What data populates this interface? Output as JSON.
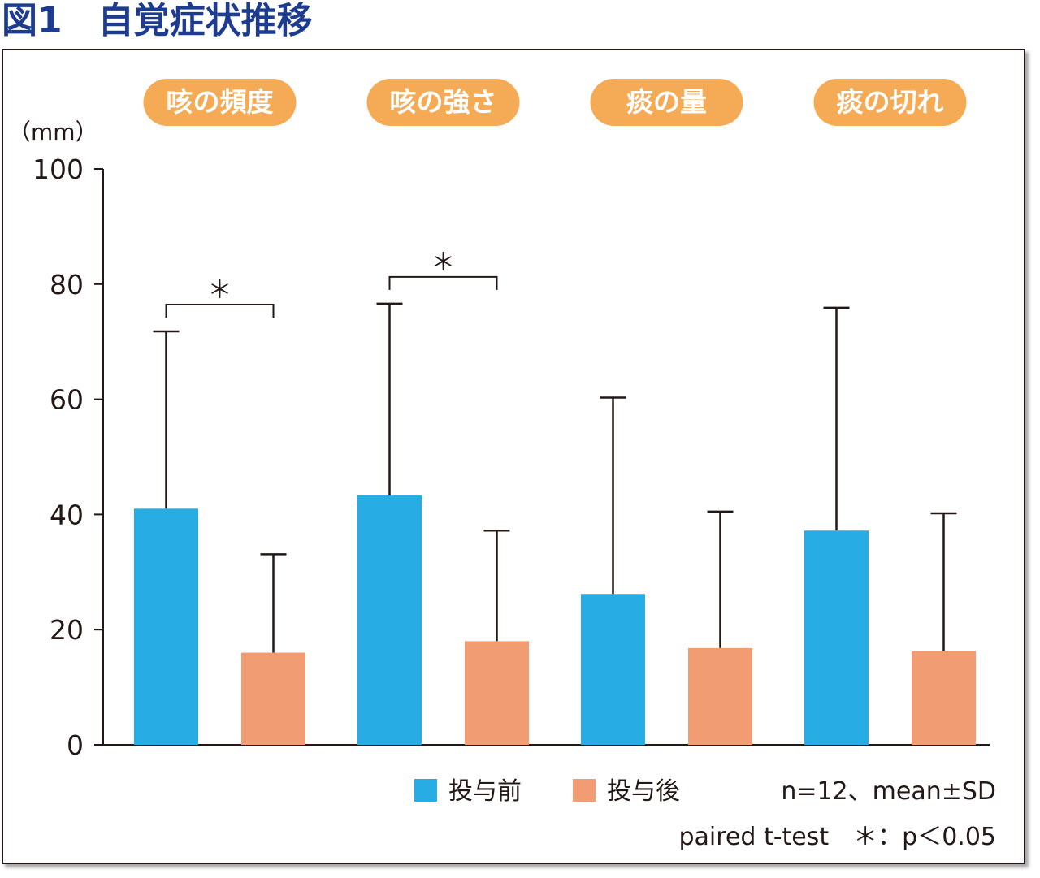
{
  "figure": {
    "title": "図1　自覚症状推移"
  },
  "colors": {
    "title": "#1d3c8f",
    "before": "#27ace3",
    "after": "#f29c74",
    "pill": "#f5ab55",
    "axis": "#231815"
  },
  "chart_data": {
    "type": "bar",
    "categories": [
      "咳の頻度",
      "咳の強さ",
      "痰の量",
      "痰の切れ"
    ],
    "series": [
      {
        "name": "投与前",
        "values": [
          41,
          43.3,
          26.2,
          37.2
        ],
        "sd": [
          30.8,
          33.3,
          34.1,
          38.7
        ]
      },
      {
        "name": "投与後",
        "values": [
          16,
          18,
          16.8,
          16.3
        ],
        "sd": [
          17.1,
          19.2,
          23.7,
          23.9
        ]
      }
    ],
    "ylabel": "（mm）",
    "ylim": [
      0,
      100
    ],
    "yticks": [
      0,
      20,
      40,
      60,
      80,
      100
    ],
    "grid": false,
    "legend_position": "bottom-right",
    "significance": [
      {
        "category_index": 0,
        "label": "＊"
      },
      {
        "category_index": 1,
        "label": "＊"
      }
    ],
    "notes": [
      "n=12、mean±SD",
      "paired t-test　＊：p＜0.05"
    ]
  }
}
